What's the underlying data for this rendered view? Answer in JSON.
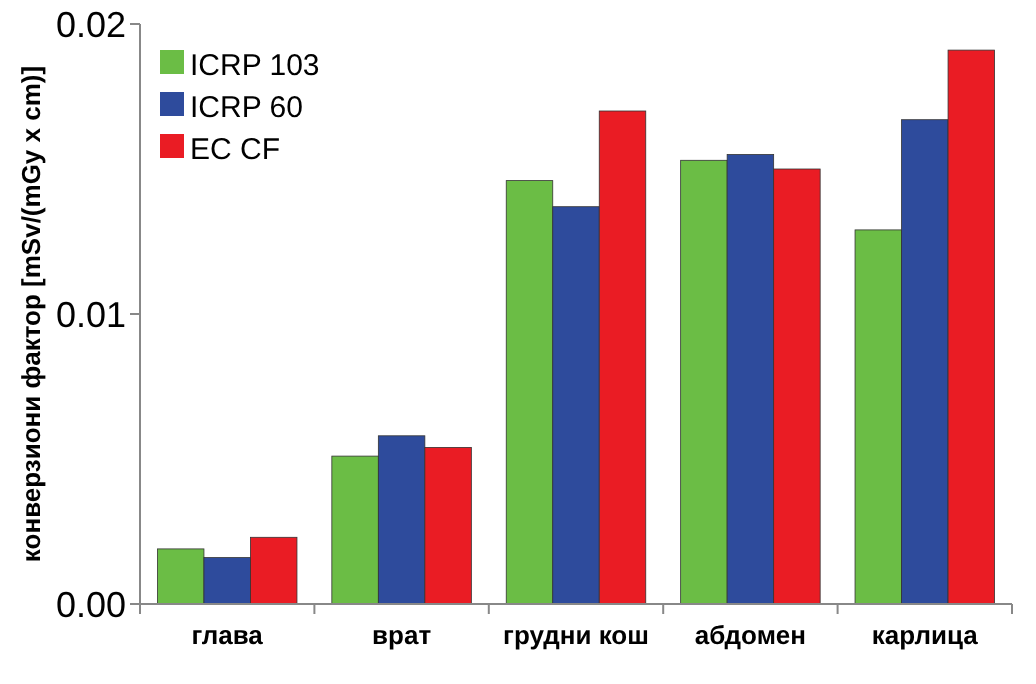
{
  "chart_data": {
    "type": "bar",
    "ylabel": "конверзиони фактор [mSv/(mGy x cm)]",
    "categories": [
      "глава",
      "врат",
      "грудни кош",
      "абдомен",
      "карлица"
    ],
    "series": [
      {
        "name": "ICRP 103",
        "color": "#6bbd45",
        "values": [
          0.0019,
          0.0051,
          0.0146,
          0.0153,
          0.0129
        ]
      },
      {
        "name": "ICRP 60",
        "color": "#2e4b9c",
        "values": [
          0.0016,
          0.0058,
          0.0137,
          0.0155,
          0.0167
        ]
      },
      {
        "name": "EC CF",
        "color": "#ea1c24",
        "values": [
          0.0023,
          0.0054,
          0.017,
          0.015,
          0.0191
        ]
      }
    ],
    "ylim": [
      0,
      0.02
    ],
    "yticks": [
      {
        "value": 0,
        "label": "0.00"
      },
      0.01,
      0.02
    ],
    "legend": "top left",
    "grid": false
  }
}
